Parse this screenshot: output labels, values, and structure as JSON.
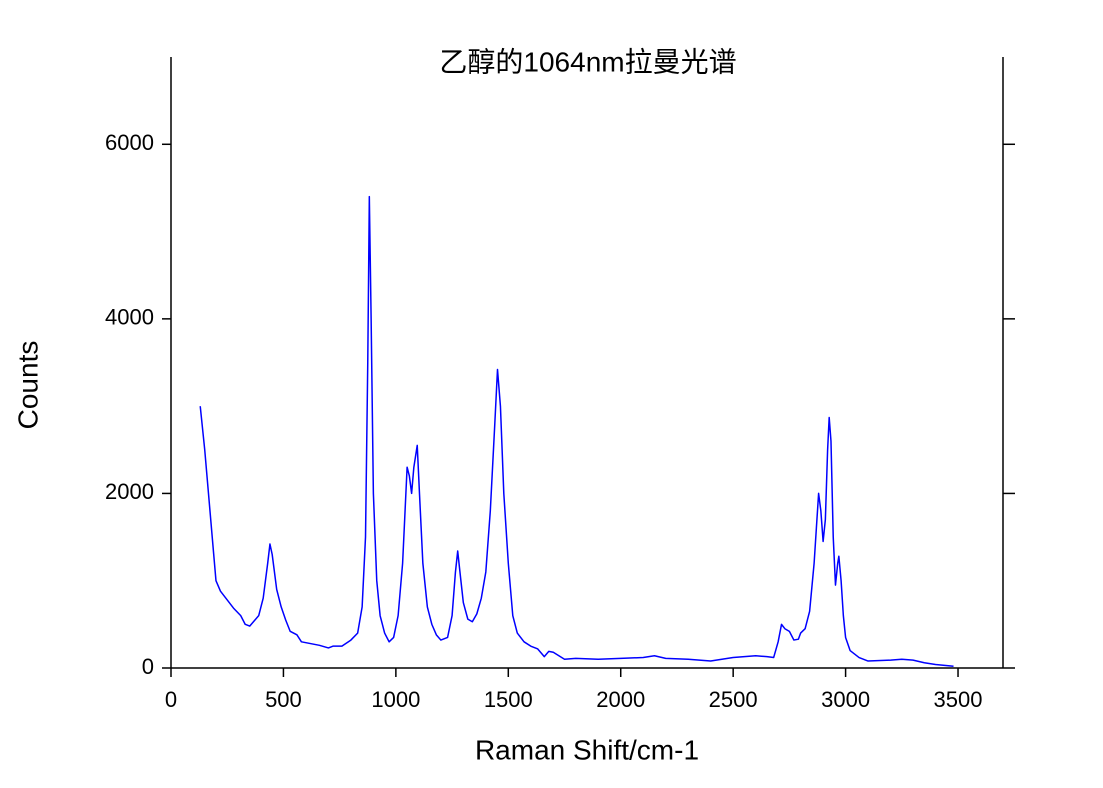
{
  "chart_data": {
    "type": "line",
    "title": "乙醇的1064nm拉曼光谱",
    "x_label": "Raman Shift/cm-1",
    "y_label": "Counts",
    "color": "#0000ff",
    "xlim": [
      0,
      3700
    ],
    "ylim": [
      0,
      7000
    ],
    "xticks": [
      0,
      500,
      1000,
      1500,
      2000,
      2500,
      3000,
      3500
    ],
    "yticks": [
      0,
      2000,
      4000,
      6000
    ],
    "x": [
      130,
      150,
      170,
      190,
      200,
      220,
      250,
      280,
      310,
      330,
      350,
      370,
      390,
      410,
      430,
      440,
      450,
      470,
      490,
      510,
      530,
      560,
      580,
      620,
      660,
      700,
      720,
      760,
      800,
      830,
      850,
      865,
      875,
      882,
      890,
      900,
      915,
      930,
      950,
      970,
      990,
      1010,
      1030,
      1050,
      1060,
      1070,
      1080,
      1095,
      1105,
      1120,
      1140,
      1160,
      1180,
      1200,
      1230,
      1250,
      1265,
      1275,
      1285,
      1300,
      1320,
      1340,
      1360,
      1380,
      1400,
      1420,
      1440,
      1452,
      1465,
      1480,
      1500,
      1520,
      1540,
      1570,
      1600,
      1630,
      1660,
      1680,
      1700,
      1750,
      1800,
      1900,
      2000,
      2100,
      2150,
      2200,
      2300,
      2400,
      2500,
      2600,
      2650,
      2680,
      2700,
      2715,
      2730,
      2750,
      2770,
      2790,
      2800,
      2820,
      2840,
      2860,
      2870,
      2880,
      2890,
      2900,
      2910,
      2920,
      2927,
      2935,
      2945,
      2955,
      2965,
      2970,
      2980,
      2990,
      3000,
      3020,
      3060,
      3100,
      3200,
      3250,
      3300,
      3350,
      3400,
      3480
    ],
    "values": [
      3000,
      2500,
      1900,
      1300,
      1000,
      880,
      780,
      680,
      600,
      500,
      480,
      540,
      600,
      800,
      1200,
      1420,
      1300,
      900,
      700,
      550,
      420,
      380,
      300,
      280,
      260,
      230,
      250,
      250,
      320,
      400,
      700,
      1500,
      3500,
      5400,
      4000,
      2000,
      1000,
      600,
      400,
      300,
      350,
      600,
      1200,
      2300,
      2200,
      2000,
      2300,
      2550,
      2000,
      1200,
      700,
      500,
      380,
      320,
      350,
      600,
      1100,
      1340,
      1100,
      750,
      560,
      530,
      620,
      800,
      1100,
      1800,
      2800,
      3420,
      3000,
      2000,
      1200,
      600,
      400,
      300,
      250,
      220,
      130,
      190,
      180,
      100,
      110,
      100,
      110,
      120,
      140,
      110,
      100,
      80,
      120,
      140,
      130,
      120,
      300,
      500,
      450,
      420,
      320,
      330,
      400,
      450,
      650,
      1200,
      1600,
      2000,
      1800,
      1450,
      1700,
      2500,
      2870,
      2600,
      1500,
      950,
      1200,
      1280,
      1000,
      600,
      350,
      200,
      120,
      80,
      90,
      100,
      90,
      60,
      40,
      20
    ]
  }
}
